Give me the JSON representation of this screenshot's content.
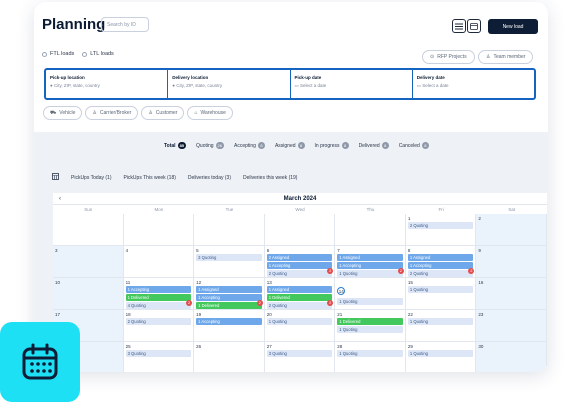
{
  "header": {
    "title": "Planning",
    "search_placeholder": "Search by ID",
    "new_load_label": "New load"
  },
  "load_type": {
    "options": [
      "FTL loads",
      "LTL loads"
    ]
  },
  "actions": {
    "rfp_label": "RFP Projects",
    "team_label": "Team member"
  },
  "searchbar": {
    "pickup_location_label": "Pick-up location",
    "pickup_location_placeholder": "City, ZIP, state, country",
    "delivery_location_label": "Delivery location",
    "delivery_location_placeholder": "City, ZIP, state, country",
    "pickup_date_label": "Pick-up date",
    "pickup_date_placeholder": "Select a date",
    "delivery_date_label": "Delivery date",
    "delivery_date_placeholder": "Select a date"
  },
  "filters": [
    "Vehicle",
    "Carrier/Broker",
    "Customer",
    "Warehouse"
  ],
  "status_tabs": [
    {
      "label": "Total",
      "count": "85",
      "active": true
    },
    {
      "label": "Quoting",
      "count": "26"
    },
    {
      "label": "Accepting",
      "count": "8"
    },
    {
      "label": "Assigned",
      "count": "8"
    },
    {
      "label": "In progress",
      "count": "8"
    },
    {
      "label": "Delivered",
      "count": "8"
    },
    {
      "label": "Canceled",
      "count": "8"
    }
  ],
  "quick_filters": [
    "PickUps Today (1)",
    "PickUps This week (18)",
    "Deliveries today (3)",
    "Deliveries this week (19)"
  ],
  "calendar": {
    "month_label": "March 2024",
    "days_of_week": [
      "Sun",
      "Mon",
      "Tue",
      "Wed",
      "Thu",
      "Fri",
      "Sat"
    ],
    "weeks": [
      [
        {
          "day": ""
        },
        {
          "day": ""
        },
        {
          "day": ""
        },
        {
          "day": ""
        },
        {
          "day": ""
        },
        {
          "day": "1",
          "events": [
            {
              "t": "q",
              "label": "2 Quoting"
            }
          ]
        },
        {
          "day": "2"
        }
      ],
      [
        {
          "day": "3"
        },
        {
          "day": "4"
        },
        {
          "day": "5",
          "events": [
            {
              "t": "q",
              "label": "3 Quoting"
            }
          ]
        },
        {
          "day": "6",
          "events": [
            {
              "t": "a",
              "label": "2 Assigned"
            },
            {
              "t": "a",
              "label": "1 Accepting"
            },
            {
              "t": "q",
              "label": "2 Quoting"
            }
          ],
          "badge": "2"
        },
        {
          "day": "7",
          "events": [
            {
              "t": "a",
              "label": "1 Assigned"
            },
            {
              "t": "a",
              "label": "1 Accepting"
            },
            {
              "t": "q",
              "label": "1 Quoting"
            }
          ],
          "badge": "2"
        },
        {
          "day": "8",
          "events": [
            {
              "t": "a",
              "label": "1 Assigned"
            },
            {
              "t": "a",
              "label": "1 Accepting"
            },
            {
              "t": "q",
              "label": "2 Quoting"
            }
          ],
          "badge": "2"
        },
        {
          "day": "9"
        }
      ],
      [
        {
          "day": "10"
        },
        {
          "day": "11",
          "events": [
            {
              "t": "a",
              "label": "1 Accepting"
            },
            {
              "t": "d",
              "label": "1 Delivered"
            },
            {
              "t": "q",
              "label": "4 Quoting"
            }
          ],
          "badge": "2"
        },
        {
          "day": "12",
          "events": [
            {
              "t": "a",
              "label": "1 Assigned"
            },
            {
              "t": "a",
              "label": "1 Accepting"
            },
            {
              "t": "d",
              "label": "1 Delivered"
            }
          ],
          "badge": "2"
        },
        {
          "day": "13",
          "events": [
            {
              "t": "a",
              "label": "1 Assigned"
            },
            {
              "t": "d",
              "label": "1 Delivered"
            },
            {
              "t": "q",
              "label": "2 Quoting"
            }
          ],
          "badge": "2"
        },
        {
          "day": "14",
          "today": true,
          "events": [
            {
              "t": "q",
              "label": "1 Quoting"
            }
          ]
        },
        {
          "day": "15",
          "events": [
            {
              "t": "q",
              "label": "1 Quoting"
            }
          ]
        },
        {
          "day": "16"
        }
      ],
      [
        {
          "day": "17"
        },
        {
          "day": "18",
          "events": [
            {
              "t": "q",
              "label": "2 Quoting"
            }
          ]
        },
        {
          "day": "19",
          "events": [
            {
              "t": "a",
              "label": "1 Accepting"
            }
          ]
        },
        {
          "day": "20",
          "events": [
            {
              "t": "q",
              "label": "1 Quoting"
            }
          ]
        },
        {
          "day": "21",
          "events": [
            {
              "t": "d",
              "label": "1 Delivered"
            },
            {
              "t": "q",
              "label": "1 Quoting"
            }
          ]
        },
        {
          "day": "22",
          "events": [
            {
              "t": "q",
              "label": "1 Quoting"
            }
          ]
        },
        {
          "day": "23"
        }
      ],
      [
        {
          "day": "24"
        },
        {
          "day": "25",
          "events": [
            {
              "t": "q",
              "label": "3 Quoting"
            }
          ]
        },
        {
          "day": "26"
        },
        {
          "day": "27",
          "events": [
            {
              "t": "q",
              "label": "3 Quoting"
            }
          ]
        },
        {
          "day": "28",
          "events": [
            {
              "t": "q",
              "label": "1 Quoting"
            }
          ]
        },
        {
          "day": "29",
          "events": [
            {
              "t": "q",
              "label": "1 Quoting"
            }
          ]
        },
        {
          "day": "30"
        }
      ]
    ]
  },
  "colors": {
    "accent": "#1565c0",
    "brand_dark": "#0e1d36",
    "app_icon_bg": "#1de0f5",
    "event_assigned": "#6fa8ea",
    "event_delivered": "#43c85e",
    "event_quoting": "#dde6f6",
    "alert_badge": "#e24c4c"
  }
}
